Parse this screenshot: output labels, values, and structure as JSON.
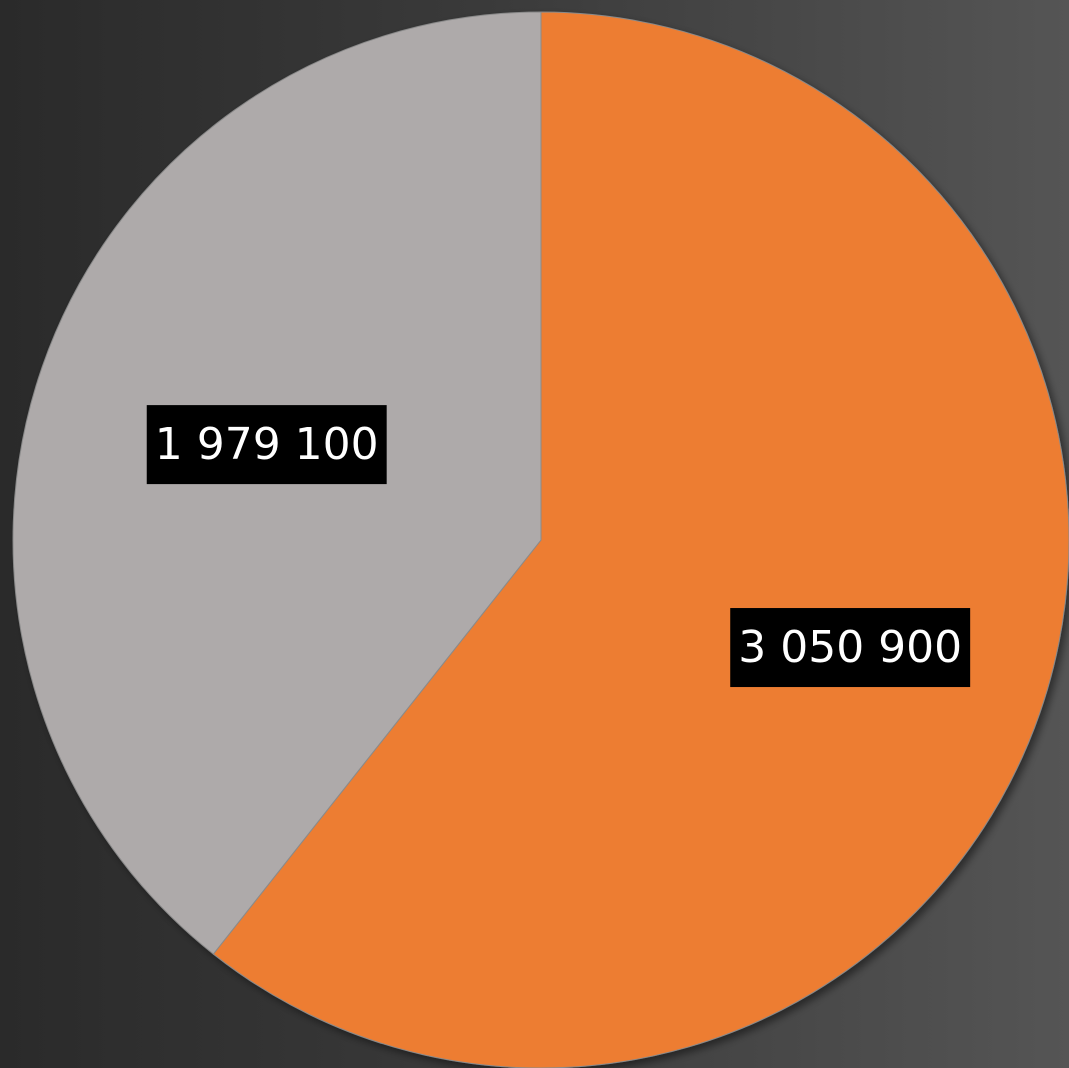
{
  "chart_data": {
    "type": "pie",
    "title": "",
    "start_angle_deg": 0,
    "direction": "clockwise",
    "slices": [
      {
        "label": "3 050 900",
        "value": 3050900,
        "color": "#ED7D31"
      },
      {
        "label": "1 979 100",
        "value": 1979100,
        "color": "#AEAAAA"
      }
    ],
    "data_label_style": {
      "background": "#000000",
      "text_color": "#FFFFFF"
    },
    "legend": "none"
  }
}
